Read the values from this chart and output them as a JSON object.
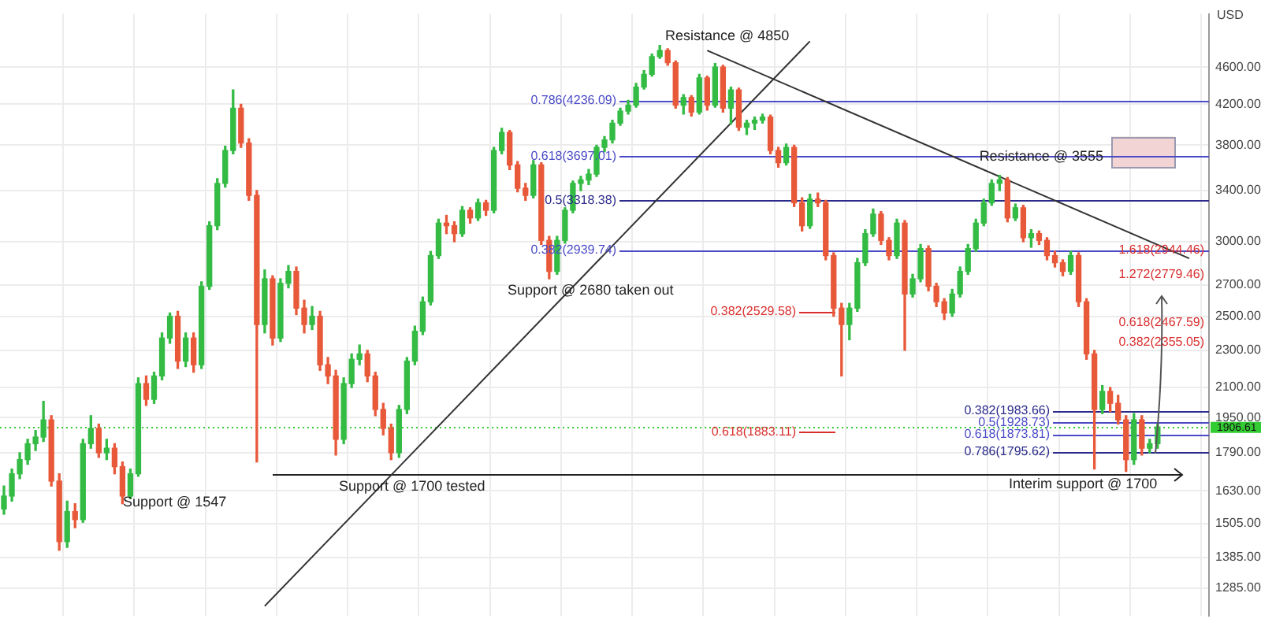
{
  "chart_data": {
    "type": "candlestick",
    "ylabel": "USD",
    "categories": [
      null,
      null,
      null,
      null,
      null,
      null,
      null,
      null,
      null,
      null,
      null,
      null,
      null,
      null,
      null,
      null,
      null,
      null,
      null,
      null,
      null,
      null,
      null,
      null,
      null,
      null,
      null,
      null,
      null,
      null,
      null,
      null,
      null,
      null,
      null,
      null,
      null,
      null,
      null,
      null,
      null,
      null,
      null,
      null,
      null,
      null,
      null,
      null,
      null,
      null,
      null,
      null,
      null,
      null,
      null,
      null,
      null,
      null,
      null,
      null,
      null,
      null,
      null,
      null,
      null,
      null,
      null,
      null,
      null,
      null,
      null,
      null,
      null,
      null,
      null,
      null,
      null,
      null,
      null,
      null,
      null,
      null,
      null,
      null,
      null,
      null,
      null,
      null,
      null,
      null,
      null,
      null,
      null,
      null,
      null,
      null,
      null,
      null,
      null,
      null,
      null,
      null,
      null,
      null,
      null,
      null,
      null,
      null,
      null,
      null,
      null,
      null,
      null,
      null,
      null,
      null,
      null,
      null,
      null,
      null,
      null,
      null,
      null,
      null,
      null,
      null,
      null,
      null,
      null,
      null,
      null,
      null,
      null,
      null,
      null,
      null,
      null,
      null,
      null,
      null,
      null,
      null,
      null,
      null,
      null,
      null,
      null,
      null,
      null,
      null,
      null,
      null,
      null
    ],
    "ohlc": [
      [
        1560,
        1650,
        1540,
        1610
      ],
      [
        1610,
        1720,
        1590,
        1700
      ],
      [
        1700,
        1790,
        1680,
        1760
      ],
      [
        1760,
        1850,
        1740,
        1830
      ],
      [
        1830,
        1890,
        1800,
        1860
      ],
      [
        1860,
        2030,
        1840,
        1940
      ],
      [
        1940,
        1960,
        1650,
        1670
      ],
      [
        1670,
        1700,
        1410,
        1440
      ],
      [
        1440,
        1590,
        1420,
        1550
      ],
      [
        1550,
        1580,
        1490,
        1520
      ],
      [
        1520,
        1850,
        1510,
        1830
      ],
      [
        1830,
        1960,
        1810,
        1900
      ],
      [
        1900,
        1920,
        1770,
        1790
      ],
      [
        1790,
        1850,
        1760,
        1810
      ],
      [
        1810,
        1830,
        1700,
        1730
      ],
      [
        1730,
        1750,
        1580,
        1610
      ],
      [
        1610,
        1720,
        1600,
        1700
      ],
      [
        1700,
        2150,
        1690,
        2120
      ],
      [
        2120,
        2160,
        2010,
        2040
      ],
      [
        2040,
        2180,
        2020,
        2160
      ],
      [
        2160,
        2400,
        2140,
        2370
      ],
      [
        2370,
        2520,
        2340,
        2500
      ],
      [
        2500,
        2530,
        2200,
        2240
      ],
      [
        2240,
        2400,
        2210,
        2370
      ],
      [
        2370,
        2400,
        2180,
        2220
      ],
      [
        2220,
        2720,
        2200,
        2690
      ],
      [
        2690,
        3150,
        2670,
        3120
      ],
      [
        3120,
        3500,
        3090,
        3460
      ],
      [
        3460,
        3790,
        3430,
        3750
      ],
      [
        3750,
        4350,
        3720,
        4160
      ],
      [
        4160,
        4200,
        3780,
        3820
      ],
      [
        3820,
        3860,
        3320,
        3360
      ],
      [
        3360,
        3400,
        1750,
        2450
      ],
      [
        2450,
        2800,
        2400,
        2740
      ],
      [
        2740,
        2760,
        2330,
        2370
      ],
      [
        2370,
        2740,
        2350,
        2710
      ],
      [
        2710,
        2830,
        2680,
        2790
      ],
      [
        2790,
        2820,
        2510,
        2550
      ],
      [
        2550,
        2600,
        2400,
        2450
      ],
      [
        2450,
        2560,
        2420,
        2500
      ],
      [
        2500,
        2530,
        2190,
        2220
      ],
      [
        2220,
        2260,
        2120,
        2160
      ],
      [
        2160,
        2190,
        1780,
        1850
      ],
      [
        1850,
        2150,
        1830,
        2120
      ],
      [
        2120,
        2280,
        2100,
        2250
      ],
      [
        2250,
        2330,
        2220,
        2280
      ],
      [
        2280,
        2300,
        2130,
        2160
      ],
      [
        2160,
        2180,
        1960,
        1990
      ],
      [
        1990,
        2020,
        1870,
        1900
      ],
      [
        1900,
        1920,
        1760,
        1790
      ],
      [
        1790,
        2010,
        1770,
        1990
      ],
      [
        1990,
        2260,
        1970,
        2240
      ],
      [
        2240,
        2440,
        2220,
        2410
      ],
      [
        2410,
        2620,
        2390,
        2590
      ],
      [
        2590,
        2930,
        2570,
        2900
      ],
      [
        2900,
        3170,
        2880,
        3140
      ],
      [
        3140,
        3200,
        3060,
        3120
      ],
      [
        3120,
        3150,
        3000,
        3060
      ],
      [
        3060,
        3270,
        3040,
        3240
      ],
      [
        3240,
        3260,
        3140,
        3180
      ],
      [
        3180,
        3330,
        3160,
        3300
      ],
      [
        3300,
        3320,
        3200,
        3240
      ],
      [
        3240,
        3780,
        3220,
        3750
      ],
      [
        3750,
        3960,
        3720,
        3920
      ],
      [
        3920,
        3940,
        3580,
        3620
      ],
      [
        3620,
        3650,
        3390,
        3420
      ],
      [
        3420,
        3460,
        3320,
        3360
      ],
      [
        3360,
        3660,
        3340,
        3620
      ],
      [
        3620,
        3640,
        2980,
        3010
      ],
      [
        3010,
        3040,
        2740,
        2790
      ],
      [
        2790,
        3040,
        2770,
        3010
      ],
      [
        3010,
        3260,
        2990,
        3240
      ],
      [
        3240,
        3480,
        3220,
        3460
      ],
      [
        3460,
        3520,
        3400,
        3490
      ],
      [
        3490,
        3580,
        3450,
        3540
      ],
      [
        3540,
        3800,
        3520,
        3780
      ],
      [
        3780,
        3880,
        3740,
        3850
      ],
      [
        3850,
        4040,
        3820,
        4010
      ],
      [
        4010,
        4160,
        3990,
        4130
      ],
      [
        4130,
        4240,
        4100,
        4190
      ],
      [
        4190,
        4420,
        4170,
        4380
      ],
      [
        4380,
        4560,
        4360,
        4520
      ],
      [
        4520,
        4750,
        4500,
        4720
      ],
      [
        4720,
        4850,
        4700,
        4790
      ],
      [
        4790,
        4810,
        4620,
        4650
      ],
      [
        4650,
        4670,
        4160,
        4190
      ],
      [
        4190,
        4300,
        4100,
        4270
      ],
      [
        4270,
        4290,
        4080,
        4120
      ],
      [
        4120,
        4520,
        4100,
        4480
      ],
      [
        4480,
        4500,
        4140,
        4190
      ],
      [
        4190,
        4640,
        4170,
        4600
      ],
      [
        4600,
        4620,
        4120,
        4160
      ],
      [
        4160,
        4380,
        4000,
        4350
      ],
      [
        4350,
        4370,
        3940,
        3970
      ],
      [
        3970,
        4040,
        3900,
        4010
      ],
      [
        4010,
        4070,
        3950,
        4040
      ],
      [
        4040,
        4100,
        4010,
        4070
      ],
      [
        4070,
        4090,
        3720,
        3750
      ],
      [
        3750,
        3780,
        3600,
        3640
      ],
      [
        3640,
        3810,
        3620,
        3780
      ],
      [
        3780,
        3800,
        3270,
        3300
      ],
      [
        3300,
        3340,
        3080,
        3120
      ],
      [
        3120,
        3370,
        3100,
        3330
      ],
      [
        3330,
        3380,
        3270,
        3300
      ],
      [
        3300,
        3320,
        2870,
        2900
      ],
      [
        2900,
        2920,
        2500,
        2550
      ],
      [
        2550,
        2580,
        2160,
        2450
      ],
      [
        2450,
        2580,
        2360,
        2550
      ],
      [
        2550,
        2880,
        2530,
        2850
      ],
      [
        2850,
        3090,
        2830,
        3060
      ],
      [
        3060,
        3250,
        3040,
        3210
      ],
      [
        3210,
        3230,
        2980,
        3010
      ],
      [
        3010,
        3030,
        2870,
        2900
      ],
      [
        2900,
        3170,
        2880,
        3140
      ],
      [
        3140,
        3160,
        2300,
        2640
      ],
      [
        2640,
        2770,
        2620,
        2740
      ],
      [
        2740,
        2980,
        2720,
        2950
      ],
      [
        2950,
        2970,
        2660,
        2690
      ],
      [
        2690,
        2710,
        2560,
        2590
      ],
      [
        2590,
        2610,
        2480,
        2520
      ],
      [
        2520,
        2670,
        2500,
        2640
      ],
      [
        2640,
        2820,
        2620,
        2790
      ],
      [
        2790,
        2980,
        2770,
        2950
      ],
      [
        2950,
        3170,
        2930,
        3140
      ],
      [
        3140,
        3330,
        3120,
        3300
      ],
      [
        3300,
        3490,
        3280,
        3460
      ],
      [
        3460,
        3530,
        3400,
        3490
      ],
      [
        3490,
        3510,
        3150,
        3180
      ],
      [
        3180,
        3290,
        3160,
        3260
      ],
      [
        3260,
        3280,
        3000,
        3030
      ],
      [
        3030,
        3090,
        2960,
        3060
      ],
      [
        3060,
        3080,
        2980,
        3010
      ],
      [
        3010,
        3030,
        2870,
        2900
      ],
      [
        2900,
        2930,
        2820,
        2850
      ],
      [
        2850,
        2870,
        2760,
        2790
      ],
      [
        2790,
        2930,
        2770,
        2900
      ],
      [
        2900,
        2920,
        2560,
        2590
      ],
      [
        2590,
        2610,
        2250,
        2280
      ],
      [
        2280,
        2300,
        1720,
        1990
      ],
      [
        1990,
        2110,
        1970,
        2080
      ],
      [
        2080,
        2100,
        1980,
        2020
      ],
      [
        2020,
        2060,
        1920,
        1940
      ],
      [
        1940,
        1960,
        1710,
        1760
      ],
      [
        1760,
        1970,
        1740,
        1940
      ],
      [
        1940,
        1960,
        1780,
        1810
      ],
      [
        1810,
        1850,
        1790,
        1830
      ],
      [
        1830,
        1920,
        1810,
        1906.61
      ],
      null,
      null,
      null,
      null,
      null,
      null
    ],
    "colors": [
      "#33bb44",
      "#33bb44",
      "#33bb44",
      "#33bb44",
      "#33bb44",
      "#33bb44",
      "#e8593a",
      "#e8593a",
      "#33bb44",
      "#e8593a",
      "#33bb44",
      "#33bb44",
      "#e8593a",
      "#33bb44",
      "#e8593a",
      "#e8593a",
      "#33bb44",
      "#33bb44",
      "#e8593a",
      "#33bb44",
      "#33bb44",
      "#33bb44",
      "#e8593a",
      "#33bb44",
      "#e8593a",
      "#33bb44",
      "#33bb44",
      "#33bb44",
      "#33bb44",
      "#33bb44",
      "#e8593a",
      "#e8593a",
      "#e8593a",
      "#33bb44",
      "#e8593a",
      "#33bb44",
      "#33bb44",
      "#e8593a",
      "#e8593a",
      "#33bb44",
      "#e8593a",
      "#e8593a",
      "#e8593a",
      "#33bb44",
      "#33bb44",
      "#33bb44",
      "#e8593a",
      "#e8593a",
      "#e8593a",
      "#e8593a",
      "#33bb44",
      "#33bb44",
      "#33bb44",
      "#33bb44",
      "#33bb44",
      "#33bb44",
      "#e8593a",
      "#e8593a",
      "#33bb44",
      "#e8593a",
      "#33bb44",
      "#e8593a",
      "#33bb44",
      "#33bb44",
      "#e8593a",
      "#e8593a",
      "#e8593a",
      "#33bb44",
      "#e8593a",
      "#e8593a",
      "#33bb44",
      "#33bb44",
      "#33bb44",
      "#33bb44",
      "#33bb44",
      "#33bb44",
      "#33bb44",
      "#33bb44",
      "#33bb44",
      "#33bb44",
      "#33bb44",
      "#33bb44",
      "#33bb44",
      "#33bb44",
      "#e8593a",
      "#e8593a",
      "#33bb44",
      "#e8593a",
      "#33bb44",
      "#e8593a",
      "#33bb44",
      "#e8593a",
      "#33bb44",
      "#e8593a",
      "#33bb44",
      "#33bb44",
      "#33bb44",
      "#e8593a",
      "#e8593a",
      "#33bb44",
      "#e8593a",
      "#e8593a",
      "#33bb44",
      "#e8593a",
      "#e8593a",
      "#e8593a",
      "#e8593a",
      "#33bb44",
      "#33bb44",
      "#33bb44",
      "#33bb44",
      "#e8593a",
      "#e8593a",
      "#33bb44",
      "#e8593a",
      "#33bb44",
      "#33bb44",
      "#e8593a",
      "#e8593a",
      "#e8593a",
      "#33bb44",
      "#33bb44",
      "#33bb44",
      "#33bb44",
      "#33bb44",
      "#33bb44",
      "#33bb44",
      "#e8593a",
      "#33bb44",
      "#e8593a",
      "#33bb44",
      "#e8593a",
      "#e8593a",
      "#e8593a",
      "#e8593a",
      "#33bb44",
      "#e8593a",
      "#e8593a",
      "#e8593a",
      "#33bb44",
      "#e8593a",
      "#e8593a",
      "#e8593a",
      "#33bb44",
      "#e8593a",
      "#33bb44",
      "#33bb44",
      null,
      null,
      null,
      null,
      null,
      null
    ],
    "series": [
      {
        "type": "line",
        "color": "#333333",
        "values": [
          null,
          null,
          null,
          null,
          null,
          null,
          null,
          null,
          null,
          null,
          null,
          null,
          null,
          null,
          null,
          null,
          null,
          null,
          null,
          null,
          null,
          null,
          null,
          null,
          null,
          null,
          null,
          null,
          null,
          null,
          null,
          null,
          null,
          1230,
          null,
          null,
          null,
          null,
          null,
          null,
          null,
          null,
          null,
          null,
          null,
          null,
          null,
          null,
          null,
          null,
          null,
          null,
          null,
          null,
          null,
          null,
          null,
          null,
          null,
          null,
          null,
          null,
          null,
          null,
          null,
          null,
          null,
          null,
          null,
          null,
          null,
          null,
          null,
          null,
          null,
          null,
          null,
          null,
          null,
          null,
          null,
          null,
          null,
          null,
          null,
          null,
          null,
          null,
          null,
          null,
          null,
          null,
          null,
          null,
          null,
          null,
          null,
          null,
          null,
          null,
          null,
          null,
          4900,
          null,
          null,
          null,
          null,
          null,
          null,
          null,
          null,
          null,
          null,
          null,
          null,
          null,
          null,
          null,
          null,
          null,
          null,
          null,
          null,
          null,
          null,
          null,
          null,
          null,
          null,
          null,
          null,
          null,
          null,
          null,
          null,
          null,
          null,
          null,
          null,
          null,
          null,
          null,
          null,
          null,
          null,
          null,
          null,
          null,
          null,
          null,
          null,
          null,
          null
        ]
      },
      {
        "type": "line",
        "color": "#333333",
        "values": [
          null,
          null,
          null,
          null,
          null,
          null,
          null,
          null,
          null,
          null,
          null,
          null,
          null,
          null,
          null,
          null,
          null,
          null,
          null,
          null,
          null,
          null,
          null,
          null,
          null,
          null,
          null,
          null,
          null,
          null,
          null,
          null,
          null,
          null,
          null,
          null,
          null,
          null,
          null,
          null,
          null,
          null,
          null,
          null,
          null,
          null,
          null,
          null,
          null,
          null,
          null,
          null,
          null,
          null,
          null,
          null,
          null,
          null,
          null,
          null,
          null,
          null,
          null,
          null,
          null,
          null,
          null,
          null,
          null,
          null,
          null,
          null,
          null,
          null,
          null,
          null,
          null,
          null,
          null,
          null,
          null,
          null,
          null,
          null,
          null,
          null,
          null,
          null,
          null,
          4790,
          null,
          null,
          null,
          null,
          null,
          null,
          null,
          null,
          null,
          null,
          null,
          null,
          null,
          null,
          null,
          null,
          null,
          null,
          null,
          null,
          null,
          null,
          null,
          null,
          null,
          null,
          null,
          null,
          null,
          null,
          null,
          null,
          null,
          null,
          null,
          null,
          null,
          null,
          null,
          null,
          null,
          null,
          null,
          null,
          null,
          null,
          null,
          null,
          null,
          null,
          null,
          null,
          null,
          null,
          null,
          null,
          null,
          null,
          null,
          null,
          2880,
          null,
          null
        ]
      }
    ],
    "ylim": [
      1200,
      5240
    ],
    "yticks": [
      {
        "value": 1285,
        "label": "1285.00"
      },
      {
        "value": 1385,
        "label": "1385.00"
      },
      {
        "value": 1505,
        "label": "1505.00"
      },
      {
        "value": 1630,
        "label": "1630.00"
      },
      {
        "value": 1790,
        "label": "1790.00"
      },
      {
        "value": 1950,
        "label": "1950.00"
      },
      {
        "value": 2100,
        "label": "2100.00"
      },
      {
        "value": 2300,
        "label": "2300.00"
      },
      {
        "value": 2500,
        "label": "2500.00"
      },
      {
        "value": 2700,
        "label": "2700.00"
      },
      {
        "value": 3000,
        "label": "3000.00"
      },
      {
        "value": 3400,
        "label": "3400.00"
      },
      {
        "value": 3800,
        "label": "3800.00"
      },
      {
        "value": 4200,
        "label": "4200.00"
      },
      {
        "value": 4600,
        "label": "4600.00"
      }
    ],
    "log": true,
    "grid": true,
    "tick_labels": "y",
    "ref_lines": [
      {
        "axis": "y",
        "value": 4236.09,
        "label": "0.786(4236.09)",
        "color": "#4b4bc8"
      },
      {
        "axis": "y",
        "value": 3697.01,
        "label": "0.618(3697.01)",
        "color": "#4b4bc8"
      },
      {
        "axis": "y",
        "value": 3318.38,
        "label": "0.5(3318.38)",
        "color": "#2b2b8c"
      },
      {
        "axis": "y",
        "value": 2939.74,
        "label": "0.382(2939.74)",
        "color": "#4b4bc8"
      },
      {
        "axis": "y",
        "value": 2529.58,
        "label": "0.382(2529.58)",
        "color": "#d9302f"
      },
      {
        "axis": "y",
        "value": 1883.11,
        "label": "0.618(1883.11)",
        "color": "#d9302f"
      },
      {
        "axis": "y",
        "value": 1983.66,
        "label": "0.382(1983.66)",
        "color": "#2b2b8c"
      },
      {
        "axis": "y",
        "value": 1928.73,
        "label": "0.5(1928.73)",
        "color": "#4b4bc8"
      },
      {
        "axis": "y",
        "value": 1873.81,
        "label": "0.618(1873.81)",
        "color": "#4b4bc8"
      },
      {
        "axis": "y",
        "value": 1795.62,
        "label": "0.786(1795.62)",
        "color": "#2b2b8c"
      },
      {
        "axis": "y",
        "value": 1700,
        "label": "Support @ 1700 tested",
        "color": "#222222"
      },
      {
        "axis": "y",
        "value": 1906.61,
        "label": "1906.61",
        "color": "#33cc33",
        "line_style": "dotted"
      }
    ],
    "bands": [
      {
        "axis": "y",
        "from": 3600,
        "to": 3880,
        "label": "Resistance @ 3555",
        "color": "#f2d4d4"
      }
    ],
    "annotations": [
      "Resistance @ 4850",
      "Support @ 2680 taken out",
      "Support @ 1547",
      "Interim support @ 1700",
      "1.618(2944.46)",
      "1.272(2779.46)",
      "0.618(2467.59)",
      "0.382(2355.05)"
    ]
  }
}
